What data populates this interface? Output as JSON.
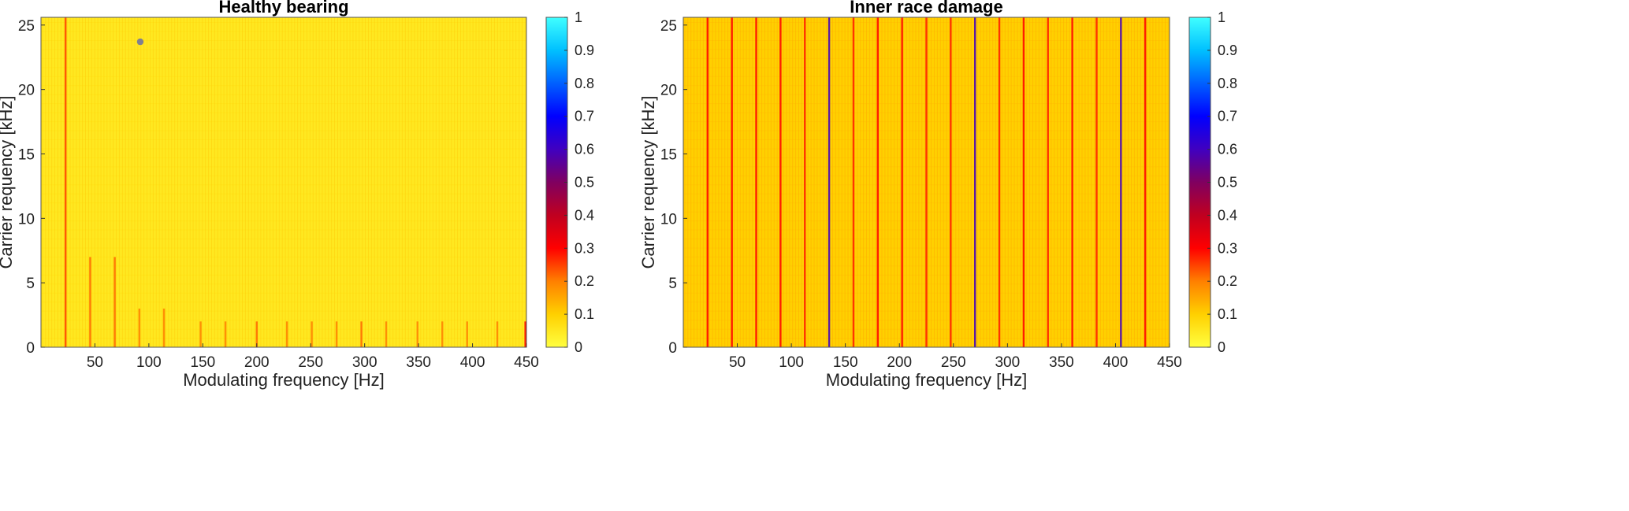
{
  "chart_data": [
    {
      "type": "heatmap",
      "title": "Healthy bearing",
      "xlabel": "Modulating frequency [Hz]",
      "ylabel": "Carrier requency [kHz]",
      "xlim": [
        0,
        450
      ],
      "ylim": [
        0,
        25.6
      ],
      "xticks": [
        "50",
        "100",
        "150",
        "200",
        "250",
        "300",
        "350",
        "400",
        "450"
      ],
      "yticks": [
        "0",
        "5",
        "10",
        "15",
        "20",
        "25"
      ],
      "colorbar": {
        "min": 0,
        "max": 1,
        "ticks": [
          "0",
          "0.1",
          "0.2",
          "0.3",
          "0.4",
          "0.5",
          "0.6",
          "0.7",
          "0.8",
          "0.9",
          "1"
        ],
        "colors": [
          "#ffff40",
          "#ffd000",
          "#ff8000",
          "#ff0000",
          "#c00020",
          "#800060",
          "#4000c0",
          "#0000ff",
          "#0060ff",
          "#00c0ff",
          "#40ffff"
        ]
      },
      "background_level": 0.05,
      "features": [
        {
          "x": 22.8,
          "y_from": 0,
          "y_to": 25.6,
          "level": 0.25
        },
        {
          "x": 45.6,
          "y_from": 0,
          "y_to": 7,
          "level": 0.22
        },
        {
          "x": 68.4,
          "y_from": 0,
          "y_to": 7,
          "level": 0.22
        },
        {
          "x": 91.2,
          "y_from": 0,
          "y_to": 3,
          "level": 0.2
        },
        {
          "x": 114,
          "y_from": 0,
          "y_to": 3,
          "level": 0.2
        },
        {
          "x": 148,
          "y_from": 0,
          "y_to": 2,
          "level": 0.2
        },
        {
          "x": 171,
          "y_from": 0,
          "y_to": 2,
          "level": 0.2
        },
        {
          "x": 200,
          "y_from": 0,
          "y_to": 2,
          "level": 0.22
        },
        {
          "x": 228,
          "y_from": 0,
          "y_to": 2,
          "level": 0.2
        },
        {
          "x": 251,
          "y_from": 0,
          "y_to": 2,
          "level": 0.2
        },
        {
          "x": 274,
          "y_from": 0,
          "y_to": 2,
          "level": 0.2
        },
        {
          "x": 297,
          "y_from": 0,
          "y_to": 2,
          "level": 0.22
        },
        {
          "x": 320,
          "y_from": 0,
          "y_to": 2,
          "level": 0.2
        },
        {
          "x": 349,
          "y_from": 0,
          "y_to": 2,
          "level": 0.2
        },
        {
          "x": 372,
          "y_from": 0,
          "y_to": 2,
          "level": 0.2
        },
        {
          "x": 395,
          "y_from": 0,
          "y_to": 2,
          "level": 0.2
        },
        {
          "x": 423,
          "y_from": 0,
          "y_to": 2,
          "level": 0.2
        },
        {
          "x": 449,
          "y_from": 0,
          "y_to": 2,
          "level": 0.3
        }
      ],
      "marker": {
        "x": 92,
        "y": 23.7,
        "color": "#808090"
      }
    },
    {
      "type": "heatmap",
      "title": "Inner race damage",
      "xlabel": "Modulating frequency [Hz]",
      "ylabel": "Carrier requency [kHz]",
      "xlim": [
        0,
        450
      ],
      "ylim": [
        0,
        25.6
      ],
      "xticks": [
        "50",
        "100",
        "150",
        "200",
        "250",
        "300",
        "350",
        "400",
        "450"
      ],
      "yticks": [
        "0",
        "5",
        "10",
        "15",
        "20",
        "25"
      ],
      "colorbar": {
        "min": 0,
        "max": 1,
        "ticks": [
          "0",
          "0.1",
          "0.2",
          "0.3",
          "0.4",
          "0.5",
          "0.6",
          "0.7",
          "0.8",
          "0.9",
          "1"
        ],
        "colors": [
          "#ffff40",
          "#ffd000",
          "#ff8000",
          "#ff0000",
          "#c00020",
          "#800060",
          "#4000c0",
          "#0000ff",
          "#0060ff",
          "#00c0ff",
          "#40ffff"
        ]
      },
      "background_level": 0.1,
      "features": [
        {
          "x": 135,
          "y_from": 0,
          "y_to": 25.6,
          "level": 0.6
        },
        {
          "x": 270,
          "y_from": 0,
          "y_to": 25.6,
          "level": 0.6
        },
        {
          "x": 405,
          "y_from": 0,
          "y_to": 25.6,
          "level": 0.6
        },
        {
          "x": 22.5,
          "y_from": 0,
          "y_to": 25.6,
          "level": 0.3
        },
        {
          "x": 45,
          "y_from": 0,
          "y_to": 25.6,
          "level": 0.3
        },
        {
          "x": 67.5,
          "y_from": 0,
          "y_to": 25.6,
          "level": 0.3
        },
        {
          "x": 90,
          "y_from": 0,
          "y_to": 25.6,
          "level": 0.3
        },
        {
          "x": 112.5,
          "y_from": 0,
          "y_to": 25.6,
          "level": 0.28
        },
        {
          "x": 157.5,
          "y_from": 0,
          "y_to": 25.6,
          "level": 0.28
        },
        {
          "x": 180,
          "y_from": 0,
          "y_to": 25.6,
          "level": 0.3
        },
        {
          "x": 202.5,
          "y_from": 0,
          "y_to": 25.6,
          "level": 0.3
        },
        {
          "x": 225,
          "y_from": 0,
          "y_to": 25.6,
          "level": 0.28
        },
        {
          "x": 247.5,
          "y_from": 0,
          "y_to": 25.6,
          "level": 0.28
        },
        {
          "x": 292.5,
          "y_from": 0,
          "y_to": 25.6,
          "level": 0.28
        },
        {
          "x": 315,
          "y_from": 0,
          "y_to": 25.6,
          "level": 0.3
        },
        {
          "x": 337.5,
          "y_from": 0,
          "y_to": 25.6,
          "level": 0.28
        },
        {
          "x": 360,
          "y_from": 0,
          "y_to": 25.6,
          "level": 0.3
        },
        {
          "x": 382.5,
          "y_from": 0,
          "y_to": 25.6,
          "level": 0.28
        },
        {
          "x": 427.5,
          "y_from": 0,
          "y_to": 25.6,
          "level": 0.3
        }
      ]
    }
  ]
}
